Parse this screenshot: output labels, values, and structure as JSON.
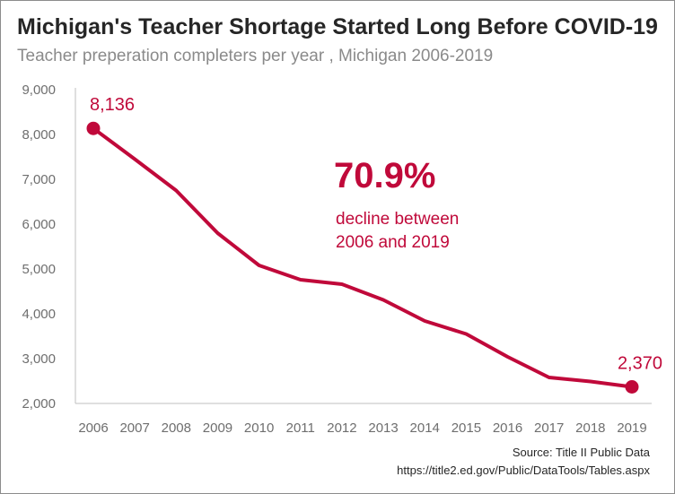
{
  "title": "Michigan's Teacher Shortage Started Long Before COVID-19",
  "subtitle": "Teacher preperation completers per year , Michigan 2006-2019",
  "annotation": {
    "headline": "70.9%",
    "line1": "decline between",
    "line2": "2006 and 2019"
  },
  "source": {
    "line1": "Source: Title II Public Data",
    "line2": "https://title2.ed.gov/Public/DataTools/Tables.aspx"
  },
  "colors": {
    "line": "#c0093a",
    "axis": "#bfbfbf",
    "text": "#262626"
  },
  "chart_data": {
    "type": "line",
    "title": "Michigan's Teacher Shortage Started Long Before COVID-19",
    "subtitle": "Teacher preperation completers per year , Michigan 2006-2019",
    "x": [
      "2006",
      "2007",
      "2008",
      "2009",
      "2010",
      "2011",
      "2012",
      "2013",
      "2014",
      "2015",
      "2016",
      "2017",
      "2018",
      "2019"
    ],
    "series": [
      {
        "values": [
          8136,
          7450,
          6750,
          5800,
          5080,
          4760,
          4660,
          4310,
          3840,
          3550,
          3040,
          2580,
          2490,
          2370
        ]
      }
    ],
    "ylim": [
      2000,
      9000
    ],
    "yticks": [
      2000,
      3000,
      4000,
      5000,
      6000,
      7000,
      8000,
      9000
    ],
    "ytick_labels": [
      "2,000",
      "3,000",
      "4,000",
      "5,000",
      "6,000",
      "7,000",
      "8,000",
      "9,000"
    ],
    "data_labels": [
      {
        "index": 0,
        "text": "8,136"
      },
      {
        "index": 13,
        "text": "2,370"
      }
    ],
    "grid": false
  }
}
